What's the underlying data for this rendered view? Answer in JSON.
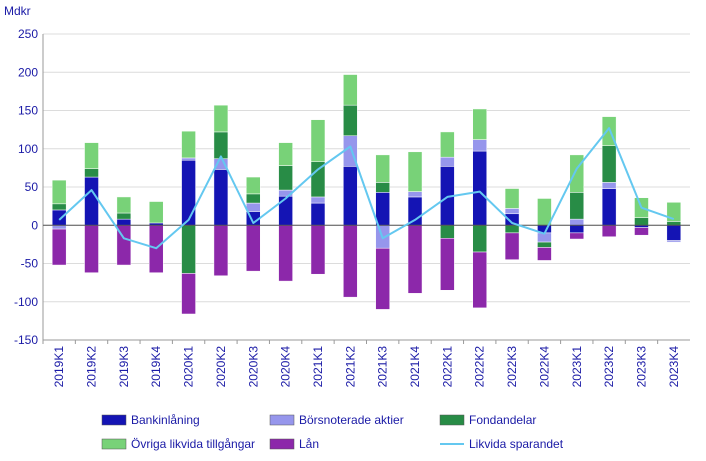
{
  "chart_data": {
    "type": "bar",
    "stacked": true,
    "unit_label": "Mdkr",
    "ylim": [
      -150,
      250
    ],
    "yticks": [
      250,
      200,
      150,
      100,
      50,
      0,
      -50,
      -100,
      -150
    ],
    "categories": [
      "2019K1",
      "2019K2",
      "2019K3",
      "2019K4",
      "2020K1",
      "2020K2",
      "2020K3",
      "2020K4",
      "2021K1",
      "2021K2",
      "2021K3",
      "2021K4",
      "2022K1",
      "2022K2",
      "2022K3",
      "2022K4",
      "2023K1",
      "2023K2",
      "2023K3",
      "2023K4"
    ],
    "series": [
      {
        "name": "Bankinlåning",
        "kind": "bar",
        "color": "#1414b4",
        "values": [
          20,
          63,
          8,
          3,
          85,
          73,
          18,
          38,
          29,
          77,
          43,
          37,
          77,
          97,
          15,
          -10,
          -10,
          48,
          -3,
          -20
        ]
      },
      {
        "name": "Börsnoterade aktier",
        "kind": "bar",
        "color": "#9696ec",
        "values": [
          -5,
          0,
          0,
          0,
          3,
          14,
          11,
          8,
          8,
          40,
          -30,
          7,
          12,
          15,
          7,
          -12,
          8,
          8,
          0,
          -2
        ]
      },
      {
        "name": "Fondandelar",
        "kind": "bar",
        "color": "#288c46",
        "values": [
          8,
          11,
          8,
          0,
          -63,
          35,
          12,
          32,
          46,
          40,
          13,
          0,
          -17,
          -35,
          -10,
          -7,
          35,
          48,
          10,
          5
        ]
      },
      {
        "name": "Övriga likvida tillgångar",
        "kind": "bar",
        "color": "#78d278",
        "values": [
          31,
          34,
          21,
          28,
          35,
          35,
          22,
          30,
          55,
          40,
          36,
          52,
          33,
          40,
          26,
          35,
          49,
          38,
          26,
          25
        ]
      },
      {
        "name": "Lån",
        "kind": "bar",
        "color": "#8c28aa",
        "values": [
          -47,
          -62,
          -52,
          -62,
          -53,
          -66,
          -60,
          -73,
          -64,
          -94,
          -80,
          -89,
          -68,
          -73,
          -35,
          -17,
          -8,
          -15,
          -10,
          0
        ]
      },
      {
        "name": "Likvida sparandet",
        "kind": "line",
        "color": "#64c8f0",
        "values": [
          7,
          46,
          -17,
          -30,
          7,
          90,
          3,
          35,
          73,
          103,
          -17,
          7,
          37,
          44,
          3,
          -11,
          74,
          127,
          23,
          8
        ]
      }
    ]
  }
}
